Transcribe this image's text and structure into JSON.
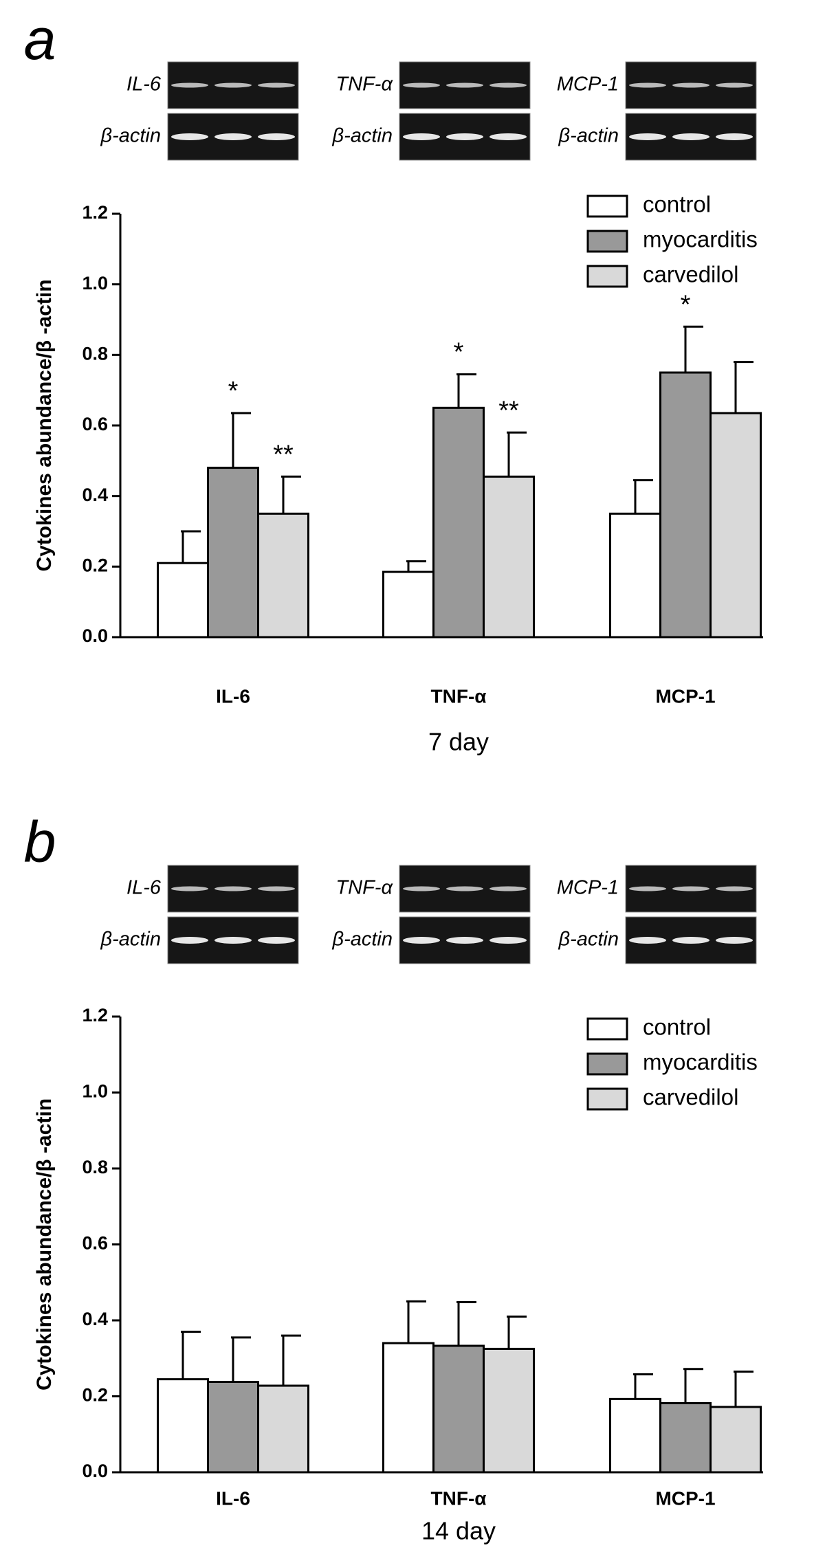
{
  "chart_data": [
    {
      "type": "bar",
      "panel_label": "a",
      "blots": [
        {
          "target": "IL-6",
          "control": "β-actin"
        },
        {
          "target": "TNF-α",
          "control": "β-actin"
        },
        {
          "target": "MCP-1",
          "control": "β-actin"
        }
      ],
      "categories": [
        "IL-6",
        "TNF-α",
        "MCP-1"
      ],
      "xlabel": "7 day",
      "ylabel": "Cytokines abundance/β -actin",
      "ylim": [
        0,
        1.2
      ],
      "yticks": [
        {
          "value": 0,
          "label": "0.0"
        },
        {
          "value": 0.2,
          "label": "0.2"
        },
        {
          "value": 0.4,
          "label": "0.4"
        },
        {
          "value": 0.6,
          "label": "0.6"
        },
        {
          "value": 0.8,
          "label": "0.8"
        },
        {
          "value": 1.0,
          "label": "1.0"
        },
        {
          "value": 1.2,
          "label": "1.2"
        }
      ],
      "legend": "upper right",
      "series": [
        {
          "name": "control",
          "color": "#ffffff",
          "values": [
            0.21,
            0.185,
            0.35
          ],
          "errors": [
            0.09,
            0.03,
            0.095
          ]
        },
        {
          "name": "myocarditis",
          "color": "#999999",
          "values": [
            0.48,
            0.65,
            0.75
          ],
          "errors": [
            0.155,
            0.095,
            0.13
          ],
          "significance": [
            "*",
            "*",
            "*"
          ]
        },
        {
          "name": "carvedilol",
          "color": "#d9d9d9",
          "values": [
            0.35,
            0.455,
            0.635
          ],
          "errors": [
            0.105,
            0.125,
            0.145
          ],
          "significance": [
            "**",
            "**",
            null
          ]
        }
      ]
    },
    {
      "type": "bar",
      "panel_label": "b",
      "blots": [
        {
          "target": "IL-6",
          "control": "β-actin"
        },
        {
          "target": "TNF-α",
          "control": "β-actin"
        },
        {
          "target": "MCP-1",
          "control": "β-actin"
        }
      ],
      "categories": [
        "IL-6",
        "TNF-α",
        "MCP-1"
      ],
      "xlabel": "14 day",
      "ylabel": "Cytokines abundance/β -actin",
      "ylim": [
        0,
        1.2
      ],
      "yticks": [
        {
          "value": 0,
          "label": "0.0"
        },
        {
          "value": 0.2,
          "label": "0.2"
        },
        {
          "value": 0.4,
          "label": "0.4"
        },
        {
          "value": 0.6,
          "label": "0.6"
        },
        {
          "value": 0.8,
          "label": "0.8"
        },
        {
          "value": 1.0,
          "label": "1.0"
        },
        {
          "value": 1.2,
          "label": "1.2"
        }
      ],
      "legend": "upper right",
      "series": [
        {
          "name": "control",
          "color": "#ffffff",
          "values": [
            0.245,
            0.34,
            0.193
          ],
          "errors": [
            0.125,
            0.11,
            0.065
          ]
        },
        {
          "name": "myocarditis",
          "color": "#999999",
          "values": [
            0.238,
            0.333,
            0.182
          ],
          "errors": [
            0.117,
            0.115,
            0.09
          ]
        },
        {
          "name": "carvedilol",
          "color": "#d9d9d9",
          "values": [
            0.228,
            0.325,
            0.172
          ],
          "errors": [
            0.132,
            0.085,
            0.093
          ]
        }
      ]
    }
  ]
}
